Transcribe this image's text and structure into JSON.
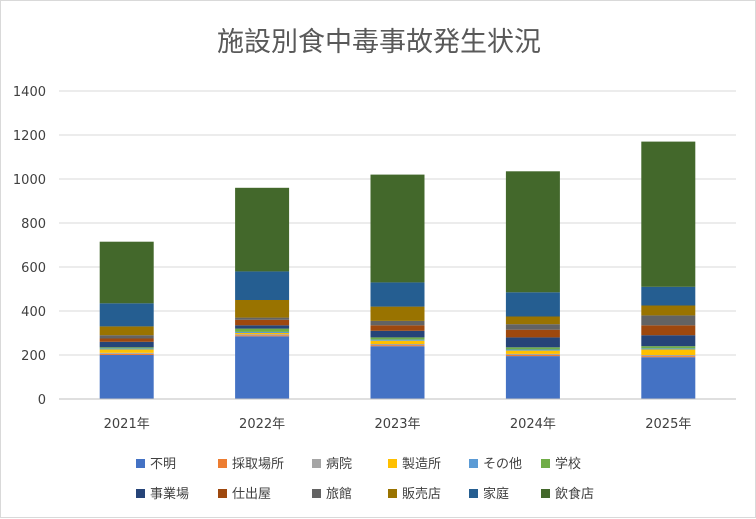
{
  "chart_data": {
    "type": "bar",
    "stacked": true,
    "title": "施設別食中毒事故発生状況",
    "xlabel": "",
    "ylabel": "",
    "categories": [
      "2021年",
      "2022年",
      "2023年",
      "2024年",
      "2025年"
    ],
    "ylim": [
      0,
      1400
    ],
    "yticks": [
      0,
      200,
      400,
      600,
      800,
      1000,
      1200,
      1400
    ],
    "grid": true,
    "legend_position": "bottom",
    "series": [
      {
        "name": "不明",
        "color": "#4472c4",
        "values": [
          200,
          285,
          240,
          195,
          190
        ]
      },
      {
        "name": "採取場所",
        "color": "#ed7d31",
        "values": [
          5,
          5,
          5,
          5,
          5
        ]
      },
      {
        "name": "病院",
        "color": "#a5a5a5",
        "values": [
          5,
          5,
          5,
          5,
          5
        ]
      },
      {
        "name": "製造所",
        "color": "#ffc000",
        "values": [
          15,
          5,
          15,
          15,
          25
        ]
      },
      {
        "name": "その他",
        "color": "#5b9bd5",
        "values": [
          5,
          5,
          5,
          5,
          5
        ]
      },
      {
        "name": "学校",
        "color": "#70ad47",
        "values": [
          5,
          15,
          10,
          10,
          10
        ]
      },
      {
        "name": "事業場",
        "color": "#264478",
        "values": [
          25,
          15,
          30,
          45,
          50
        ]
      },
      {
        "name": "仕出屋",
        "color": "#9e480e",
        "values": [
          15,
          25,
          25,
          35,
          45
        ]
      },
      {
        "name": "旅館",
        "color": "#636363",
        "values": [
          15,
          10,
          20,
          25,
          45
        ]
      },
      {
        "name": "販売店",
        "color": "#997300",
        "values": [
          40,
          80,
          65,
          35,
          45
        ]
      },
      {
        "name": "家庭",
        "color": "#255e91",
        "values": [
          105,
          130,
          110,
          110,
          85
        ]
      },
      {
        "name": "飲食店",
        "color": "#43682b",
        "values": [
          280,
          380,
          490,
          550,
          660
        ]
      }
    ]
  }
}
